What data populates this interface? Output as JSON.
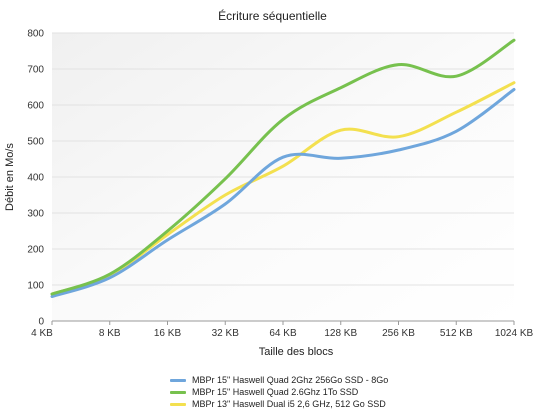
{
  "chart_data": {
    "type": "line",
    "title": "Écriture séquentielle",
    "xlabel": "Taille des blocs",
    "ylabel": "Débit en Mo/s",
    "categories": [
      "4 KB",
      "8 KB",
      "16 KB",
      "32 KB",
      "64 KB",
      "128 KB",
      "256 KB",
      "512 KB",
      "1024 KB"
    ],
    "ylim": [
      0,
      800
    ],
    "yticks": [
      0,
      100,
      200,
      300,
      400,
      500,
      600,
      700,
      800
    ],
    "grid": true,
    "legend_position": "bottom",
    "series": [
      {
        "name": "MBPr 15\" Haswell Quad 2Ghz 256Go SSD - 8Go",
        "color": "#6fa6dc",
        "values": [
          68,
          120,
          225,
          325,
          455,
          452,
          475,
          527,
          643
        ]
      },
      {
        "name": "MBPr 15\" Haswell Quad 2.6Ghz 1To SSD",
        "color": "#77c14e",
        "values": [
          75,
          130,
          250,
          395,
          560,
          648,
          712,
          680,
          780
        ]
      },
      {
        "name": "MBPr 13\" Haswell Dual i5 2,6 GHz, 512 Go SSD",
        "color": "#f3e04f",
        "values": [
          75,
          127,
          240,
          350,
          430,
          530,
          512,
          580,
          662
        ]
      }
    ]
  }
}
